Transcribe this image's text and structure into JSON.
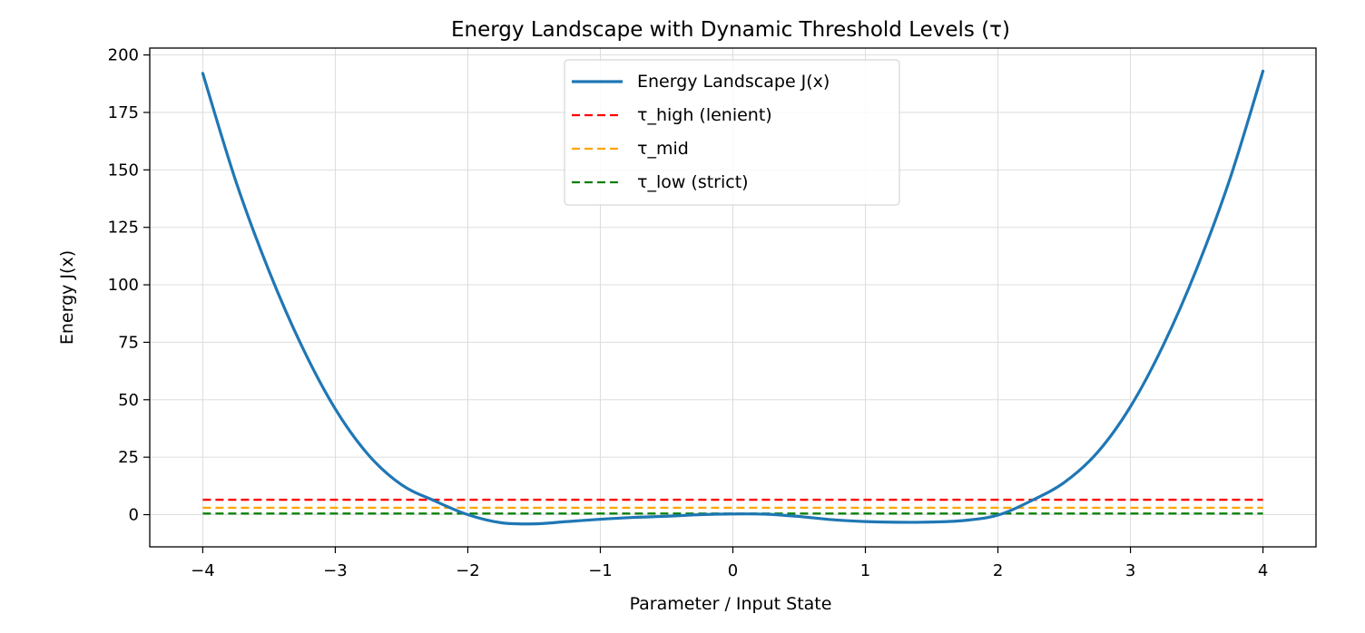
{
  "chart_data": {
    "type": "line",
    "title": "Energy Landscape with Dynamic Threshold Levels (τ)",
    "xlabel": "Parameter / Input State",
    "ylabel": "Energy J(x)",
    "xlim": [
      -4.4,
      4.4
    ],
    "ylim": [
      -14,
      203
    ],
    "xticks": [
      -4,
      -3,
      -2,
      -1,
      0,
      1,
      2,
      3,
      4
    ],
    "xtick_labels": [
      "−4",
      "−3",
      "−2",
      "−1",
      "0",
      "1",
      "2",
      "3",
      "4"
    ],
    "yticks": [
      0,
      25,
      50,
      75,
      100,
      125,
      150,
      175,
      200
    ],
    "ytick_labels": [
      "0",
      "25",
      "50",
      "75",
      "100",
      "125",
      "150",
      "175",
      "200"
    ],
    "grid": true,
    "legend_position": "top-center",
    "series": [
      {
        "name": "Energy Landscape J(x)",
        "style": "solid",
        "color": "#1f77b4",
        "x": [
          -4.0,
          -3.75,
          -3.5,
          -3.25,
          -3.0,
          -2.75,
          -2.5,
          -2.25,
          -2.0,
          -1.75,
          -1.5,
          -1.25,
          -1.0,
          -0.75,
          -0.5,
          -0.25,
          0.0,
          0.25,
          0.5,
          0.75,
          1.0,
          1.25,
          1.5,
          1.75,
          2.0,
          2.25,
          2.5,
          2.75,
          3.0,
          3.25,
          3.5,
          3.75,
          4.0
        ],
        "y": [
          192,
          145,
          106,
          73,
          46,
          26,
          13,
          6,
          0,
          -3.5,
          -4,
          -3,
          -2,
          -1.2,
          -0.7,
          0,
          0.3,
          0.2,
          -0.8,
          -2.2,
          -3,
          -3.3,
          -3.2,
          -2.5,
          -0.2,
          6,
          14,
          27,
          47,
          74,
          107,
          146,
          193
        ]
      },
      {
        "name": "τ_high (lenient)",
        "style": "dashed",
        "color": "#ff0000",
        "x": [
          -4,
          4
        ],
        "y": [
          6.5,
          6.5
        ]
      },
      {
        "name": "τ_mid",
        "style": "dashed",
        "color": "#ffa500",
        "x": [
          -4,
          4
        ],
        "y": [
          3.0,
          3.0
        ]
      },
      {
        "name": "τ_low (strict)",
        "style": "dashed",
        "color": "#008000",
        "x": [
          -4,
          4
        ],
        "y": [
          0.5,
          0.5
        ]
      }
    ]
  }
}
